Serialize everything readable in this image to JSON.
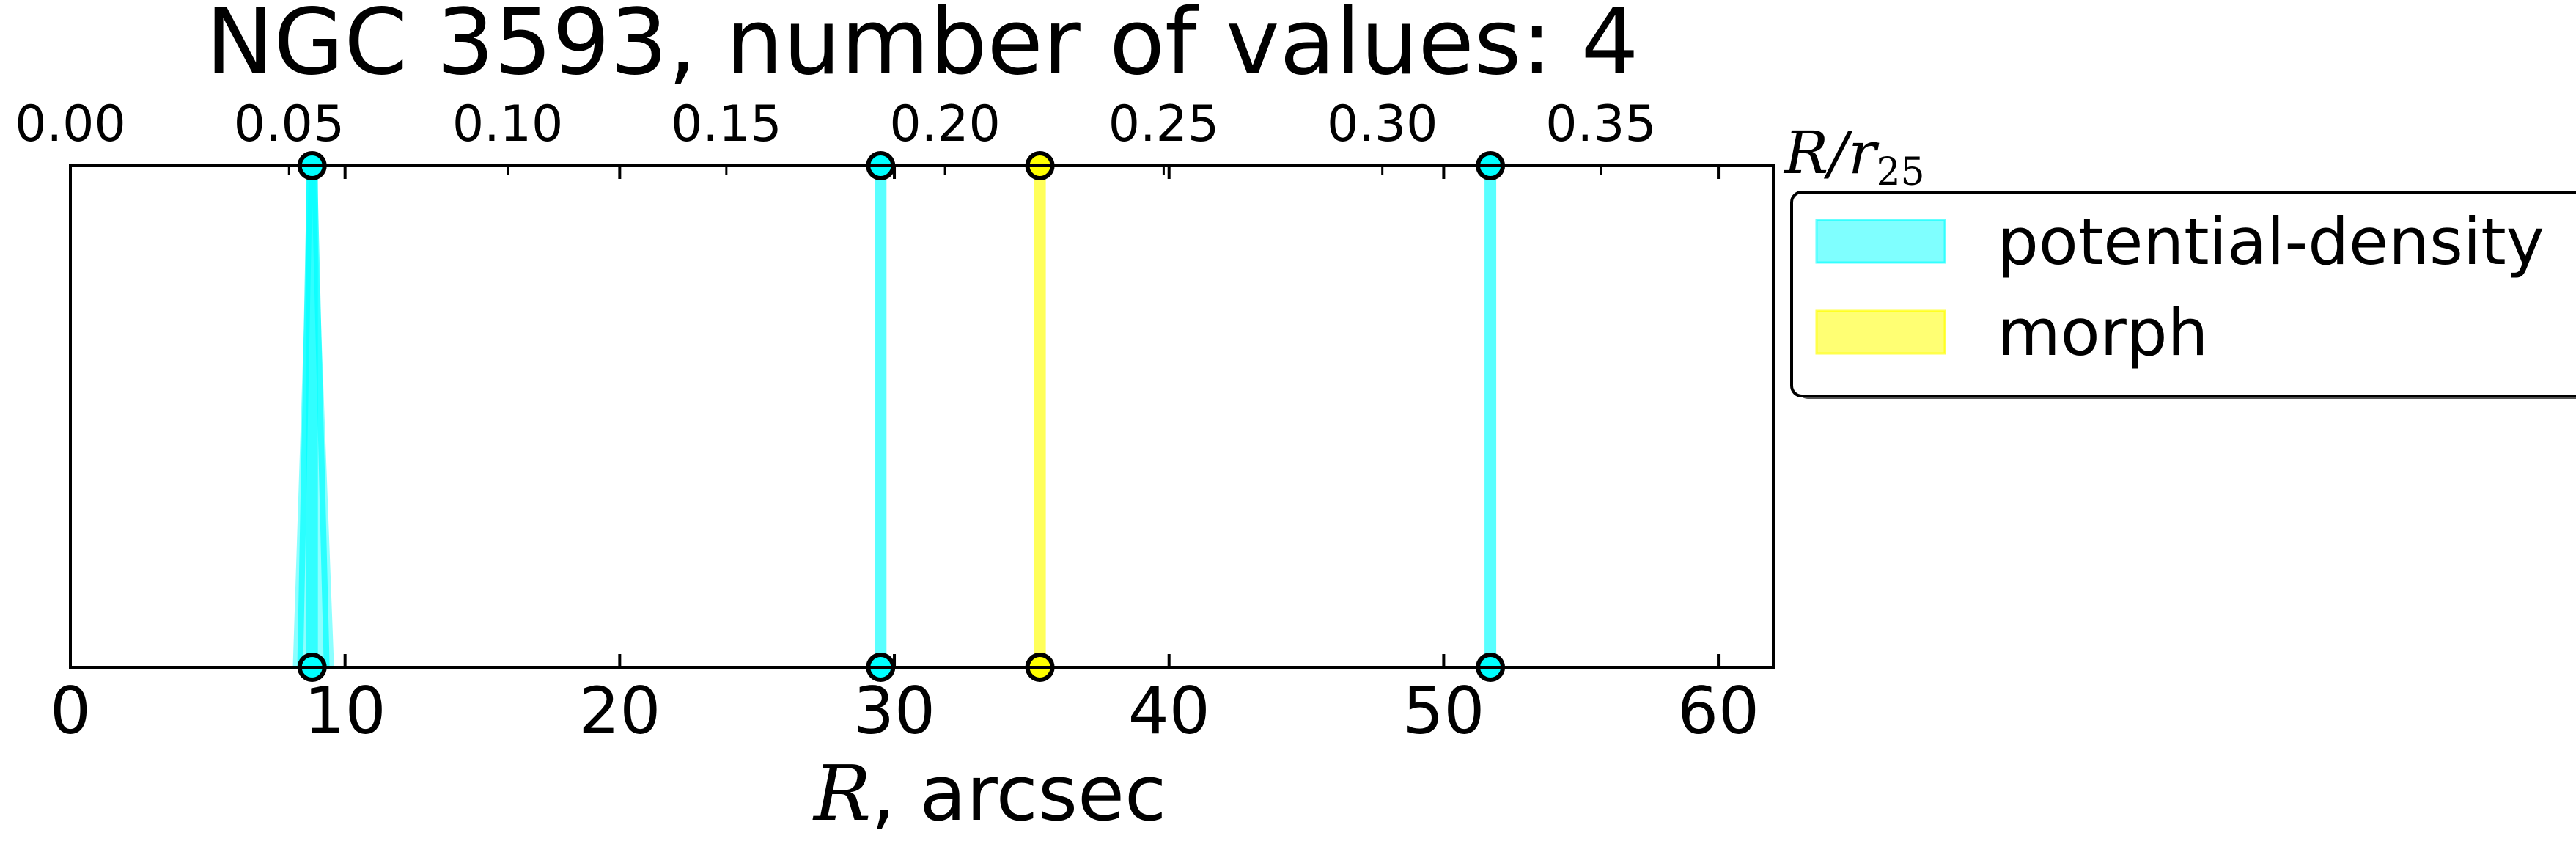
{
  "chart_data": {
    "type": "scatter",
    "title": "NGC 3593, number of values: 4",
    "xlabel": {
      "math": "R",
      "text": ", arcsec"
    },
    "top_xlabel": {
      "main": "R/r",
      "sub": "25"
    },
    "xlim": [
      0,
      62
    ],
    "xticks": [
      0,
      10,
      20,
      30,
      40,
      50,
      60
    ],
    "top_xlim": [
      0,
      0.3894
    ],
    "top_xticks": [
      "0.00",
      "0.05",
      "0.10",
      "0.15",
      "0.20",
      "0.25",
      "0.30",
      "0.35"
    ],
    "grid": false,
    "legend": {
      "placement": "outside-right-top",
      "entries": [
        {
          "name": "potential-density",
          "color": "#00ffff"
        },
        {
          "name": "morph",
          "color": "#ffff00"
        }
      ]
    },
    "series": [
      {
        "name": "potential-density",
        "color": "#00ffff",
        "points": [
          {
            "x": 8.8,
            "spread": [
              8.1,
              9.6
            ]
          },
          {
            "x": 29.5
          },
          {
            "x": 51.7
          }
        ]
      },
      {
        "name": "morph",
        "color": "#ffff00",
        "points": [
          {
            "x": 35.3
          }
        ]
      }
    ]
  }
}
